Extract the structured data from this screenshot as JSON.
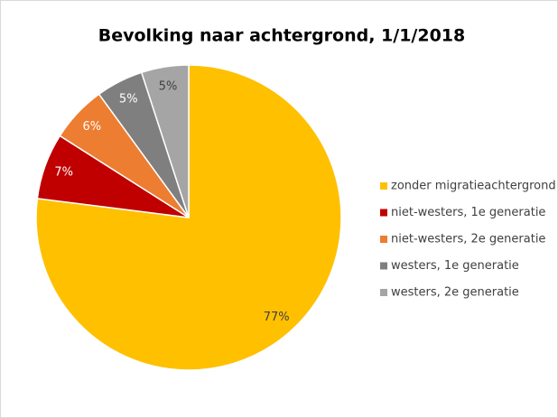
{
  "chart_data": {
    "type": "pie",
    "title": "Bevolking naar achtergrond, 1/1/2018",
    "categories": [
      "zonder migratieachtergrond",
      "niet-westers, 1e generatie",
      "niet-westers, 2e generatie",
      "westers, 1e generatie",
      "westers, 2e generatie"
    ],
    "values": [
      77,
      7,
      6,
      5,
      5
    ],
    "value_labels": [
      "77%",
      "7%",
      "6%",
      "5%",
      "5%"
    ],
    "colors": [
      "#FFC000",
      "#C00000",
      "#ED7D31",
      "#7F7F7F",
      "#A5A5A5"
    ],
    "legend": "right"
  }
}
